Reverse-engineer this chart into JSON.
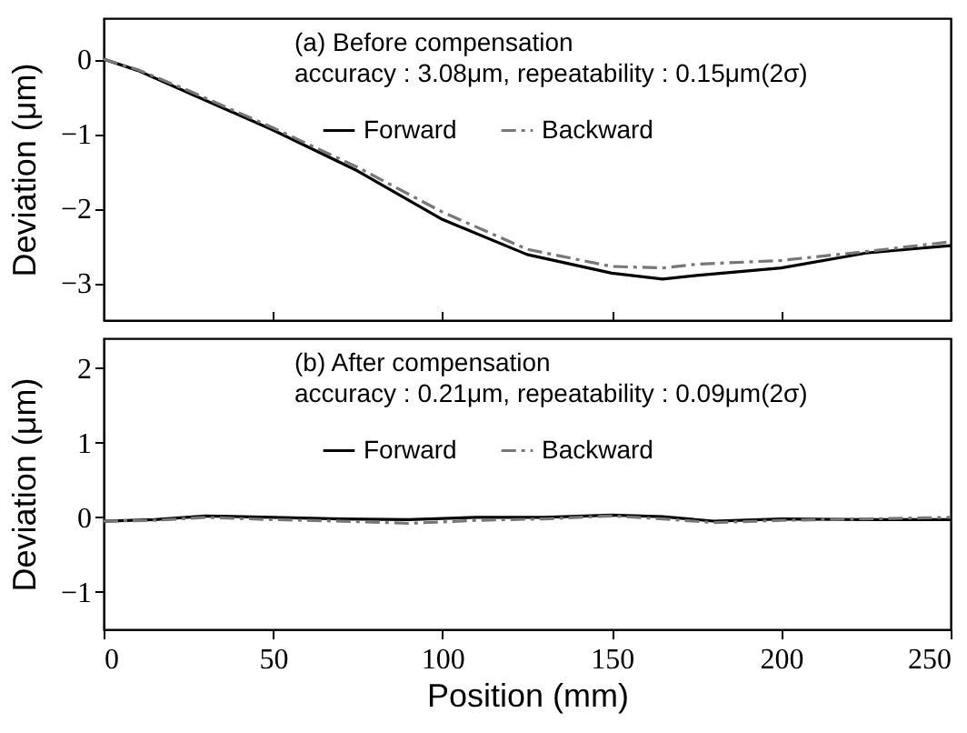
{
  "chart_data": [
    {
      "type": "line",
      "title": "(a) Before compensation",
      "subtitle": "accuracy : 3.08μm,  repeatability : 0.15μm(2σ)",
      "ylabel": "Deviation  (μm)",
      "xlim": [
        0,
        250
      ],
      "xticks": [
        0,
        50,
        100,
        150,
        200,
        250
      ],
      "ylim": [
        -3.5,
        0.55
      ],
      "yticks": [
        0,
        -1,
        -2,
        -3
      ],
      "tick_labels": "y",
      "grid": false,
      "legend": "top",
      "x": [
        0,
        10,
        25,
        50,
        75,
        100,
        125,
        150,
        165,
        175,
        200,
        225,
        250
      ],
      "series": [
        {
          "name": "Forward",
          "color": "#000000",
          "line_style": "solid",
          "values": [
            0,
            -0.15,
            -0.45,
            -0.95,
            -1.5,
            -2.15,
            -2.62,
            -2.87,
            -2.95,
            -2.9,
            -2.8,
            -2.6,
            -2.5
          ]
        },
        {
          "name": "Backward",
          "color": "#777777",
          "line_style": "dashed",
          "values": [
            0,
            -0.14,
            -0.42,
            -0.92,
            -1.45,
            -2.05,
            -2.55,
            -2.78,
            -2.8,
            -2.75,
            -2.7,
            -2.58,
            -2.45
          ]
        }
      ]
    },
    {
      "type": "line",
      "title": "(b) After compensation",
      "subtitle": "accuracy : 0.21μm, repeatability : 0.09μm(2σ)",
      "xlabel": "Position  (mm)",
      "ylabel": "Deviation  (μm)",
      "xlim": [
        0,
        250
      ],
      "xticks": [
        0,
        50,
        100,
        150,
        200,
        250
      ],
      "ylim": [
        -1.5,
        2.4
      ],
      "yticks": [
        -1,
        0,
        1,
        2
      ],
      "grid": false,
      "legend": "top",
      "x": [
        0,
        15,
        30,
        50,
        70,
        90,
        110,
        130,
        150,
        165,
        180,
        200,
        225,
        250
      ],
      "series": [
        {
          "name": "Forward",
          "color": "#000000",
          "line_style": "solid",
          "values": [
            -0.05,
            -0.03,
            0.02,
            0,
            -0.02,
            -0.03,
            0,
            0,
            0.03,
            0.01,
            -0.05,
            -0.02,
            -0.03,
            -0.03
          ]
        },
        {
          "name": "Backward",
          "color": "#777777",
          "line_style": "dashed",
          "values": [
            -0.05,
            -0.04,
            0,
            -0.03,
            -0.05,
            -0.08,
            -0.04,
            -0.02,
            0.02,
            -0.02,
            -0.07,
            -0.04,
            -0.02,
            0
          ]
        }
      ]
    }
  ]
}
